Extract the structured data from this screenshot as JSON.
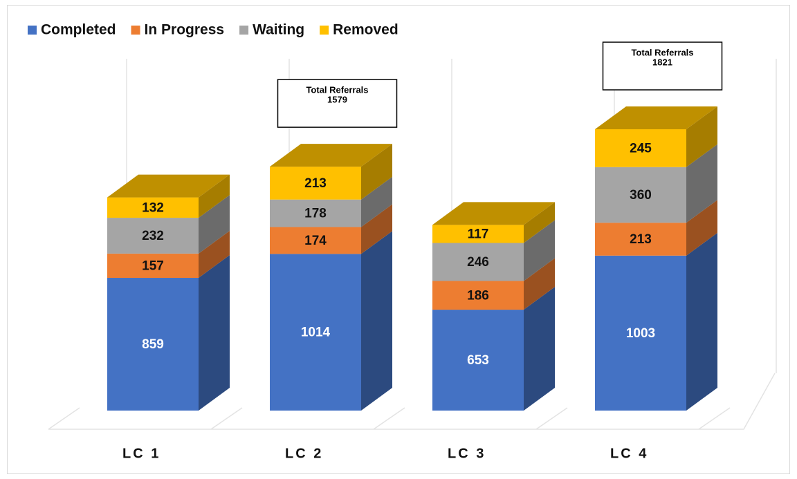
{
  "chart_data": {
    "type": "bar",
    "stacked": true,
    "categories": [
      "LC 1",
      "LC 2",
      "LC 3",
      "LC 4"
    ],
    "series": [
      {
        "name": "Completed",
        "color": "#4472c4",
        "values": [
          859,
          1014,
          653,
          1003
        ]
      },
      {
        "name": "In Progress",
        "color": "#ed7d31",
        "values": [
          157,
          174,
          186,
          213
        ]
      },
      {
        "name": "Waiting",
        "color": "#a5a5a5",
        "values": [
          232,
          178,
          246,
          360
        ]
      },
      {
        "name": "Removed",
        "color": "#ffc000",
        "values": [
          132,
          213,
          117,
          245
        ]
      }
    ],
    "annotations": [
      {
        "text": "Total Referrals",
        "value": 1579,
        "category": "LC 2"
      },
      {
        "text": "Total Referrals",
        "value": 1821,
        "category": "LC 4"
      }
    ],
    "legend": "top-left"
  }
}
